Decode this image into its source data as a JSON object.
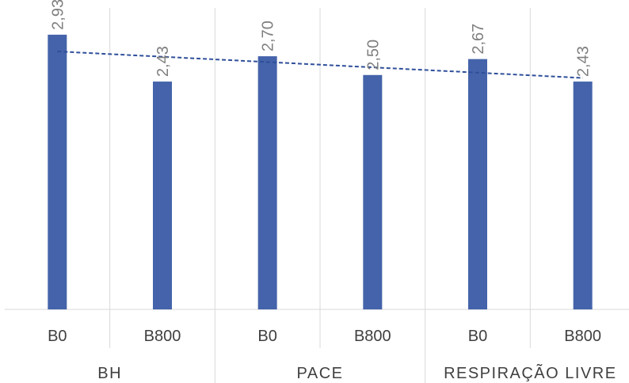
{
  "chart_data": {
    "type": "bar",
    "groups": [
      "BH",
      "PACE",
      "RESPIRAÇÃO LIVRE"
    ],
    "categories": [
      "B0",
      "B800",
      "B0",
      "B800",
      "B0",
      "B800"
    ],
    "values": [
      2.93,
      2.43,
      2.7,
      2.5,
      2.67,
      2.43
    ],
    "value_labels": [
      "2,93",
      "2,43",
      "2,70",
      "2,50",
      "2,67",
      "2,43"
    ],
    "ylim": [
      0,
      3.3
    ],
    "trendline": {
      "type": "linear",
      "style": "dashed"
    },
    "grid": "vertical separators",
    "colors": {
      "bar": "#4463aa",
      "trend": "#2f4f9a",
      "separator": "#d9d9d9"
    }
  }
}
